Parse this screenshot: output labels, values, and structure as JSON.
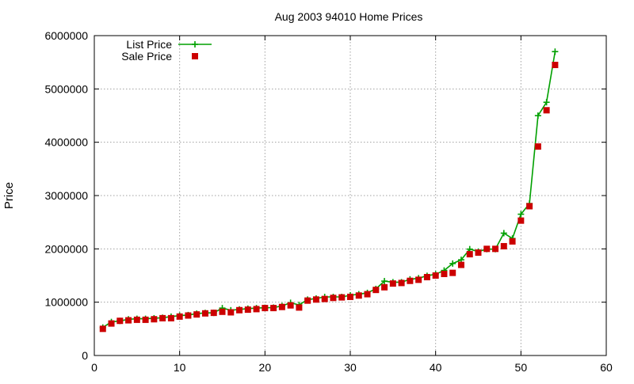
{
  "chart_data": {
    "type": "line",
    "title": "Aug 2003 94010 Home Prices",
    "xlabel": "",
    "ylabel": "Price",
    "xlim": [
      0,
      60
    ],
    "ylim": [
      0,
      6000000
    ],
    "x_ticks": [
      "0",
      "10",
      "20",
      "30",
      "40",
      "50",
      "60"
    ],
    "y_ticks": [
      "0",
      "1000000",
      "2000000",
      "3000000",
      "4000000",
      "5000000",
      "6000000"
    ],
    "grid": true,
    "legend_position": "top-left",
    "x": [
      1,
      2,
      3,
      4,
      5,
      6,
      7,
      8,
      9,
      10,
      11,
      12,
      13,
      14,
      15,
      16,
      17,
      18,
      19,
      20,
      21,
      22,
      23,
      24,
      25,
      26,
      27,
      28,
      29,
      30,
      31,
      32,
      33,
      34,
      35,
      36,
      37,
      38,
      39,
      40,
      41,
      42,
      43,
      44,
      45,
      46,
      47,
      48,
      49,
      50,
      51,
      52,
      53,
      54
    ],
    "series": [
      {
        "name": "List Price",
        "style": "line-plus",
        "color": "#00a000",
        "values": [
          525000,
          629000,
          649000,
          679000,
          689000,
          689000,
          699000,
          709000,
          729000,
          749000,
          759000,
          785000,
          799000,
          799000,
          889000,
          849000,
          865000,
          879000,
          889000,
          895000,
          899000,
          929000,
          989000,
          949000,
          1049000,
          1069000,
          1099000,
          1099000,
          1099000,
          1129000,
          1150000,
          1175000,
          1249000,
          1395000,
          1375000,
          1375000,
          1429000,
          1450000,
          1495000,
          1525000,
          1595000,
          1725000,
          1795000,
          1995000,
          1950000,
          1995000,
          1995000,
          2295000,
          2195000,
          2650000,
          2850000,
          4500000,
          4750000,
          5700000
        ]
      },
      {
        "name": "Sale Price",
        "style": "square-points",
        "color": "#cc0000",
        "values": [
          500000,
          600000,
          650000,
          660000,
          670000,
          670000,
          680000,
          700000,
          700000,
          730000,
          750000,
          770000,
          790000,
          800000,
          820000,
          810000,
          850000,
          860000,
          870000,
          890000,
          890000,
          910000,
          940000,
          900000,
          1030000,
          1050000,
          1060000,
          1080000,
          1090000,
          1100000,
          1125000,
          1150000,
          1230000,
          1280000,
          1350000,
          1360000,
          1400000,
          1420000,
          1470000,
          1500000,
          1530000,
          1550000,
          1700000,
          1900000,
          1930000,
          2000000,
          2000000,
          2050000,
          2140000,
          2530000,
          2800000,
          3920000,
          4600000,
          5450000
        ]
      }
    ]
  }
}
